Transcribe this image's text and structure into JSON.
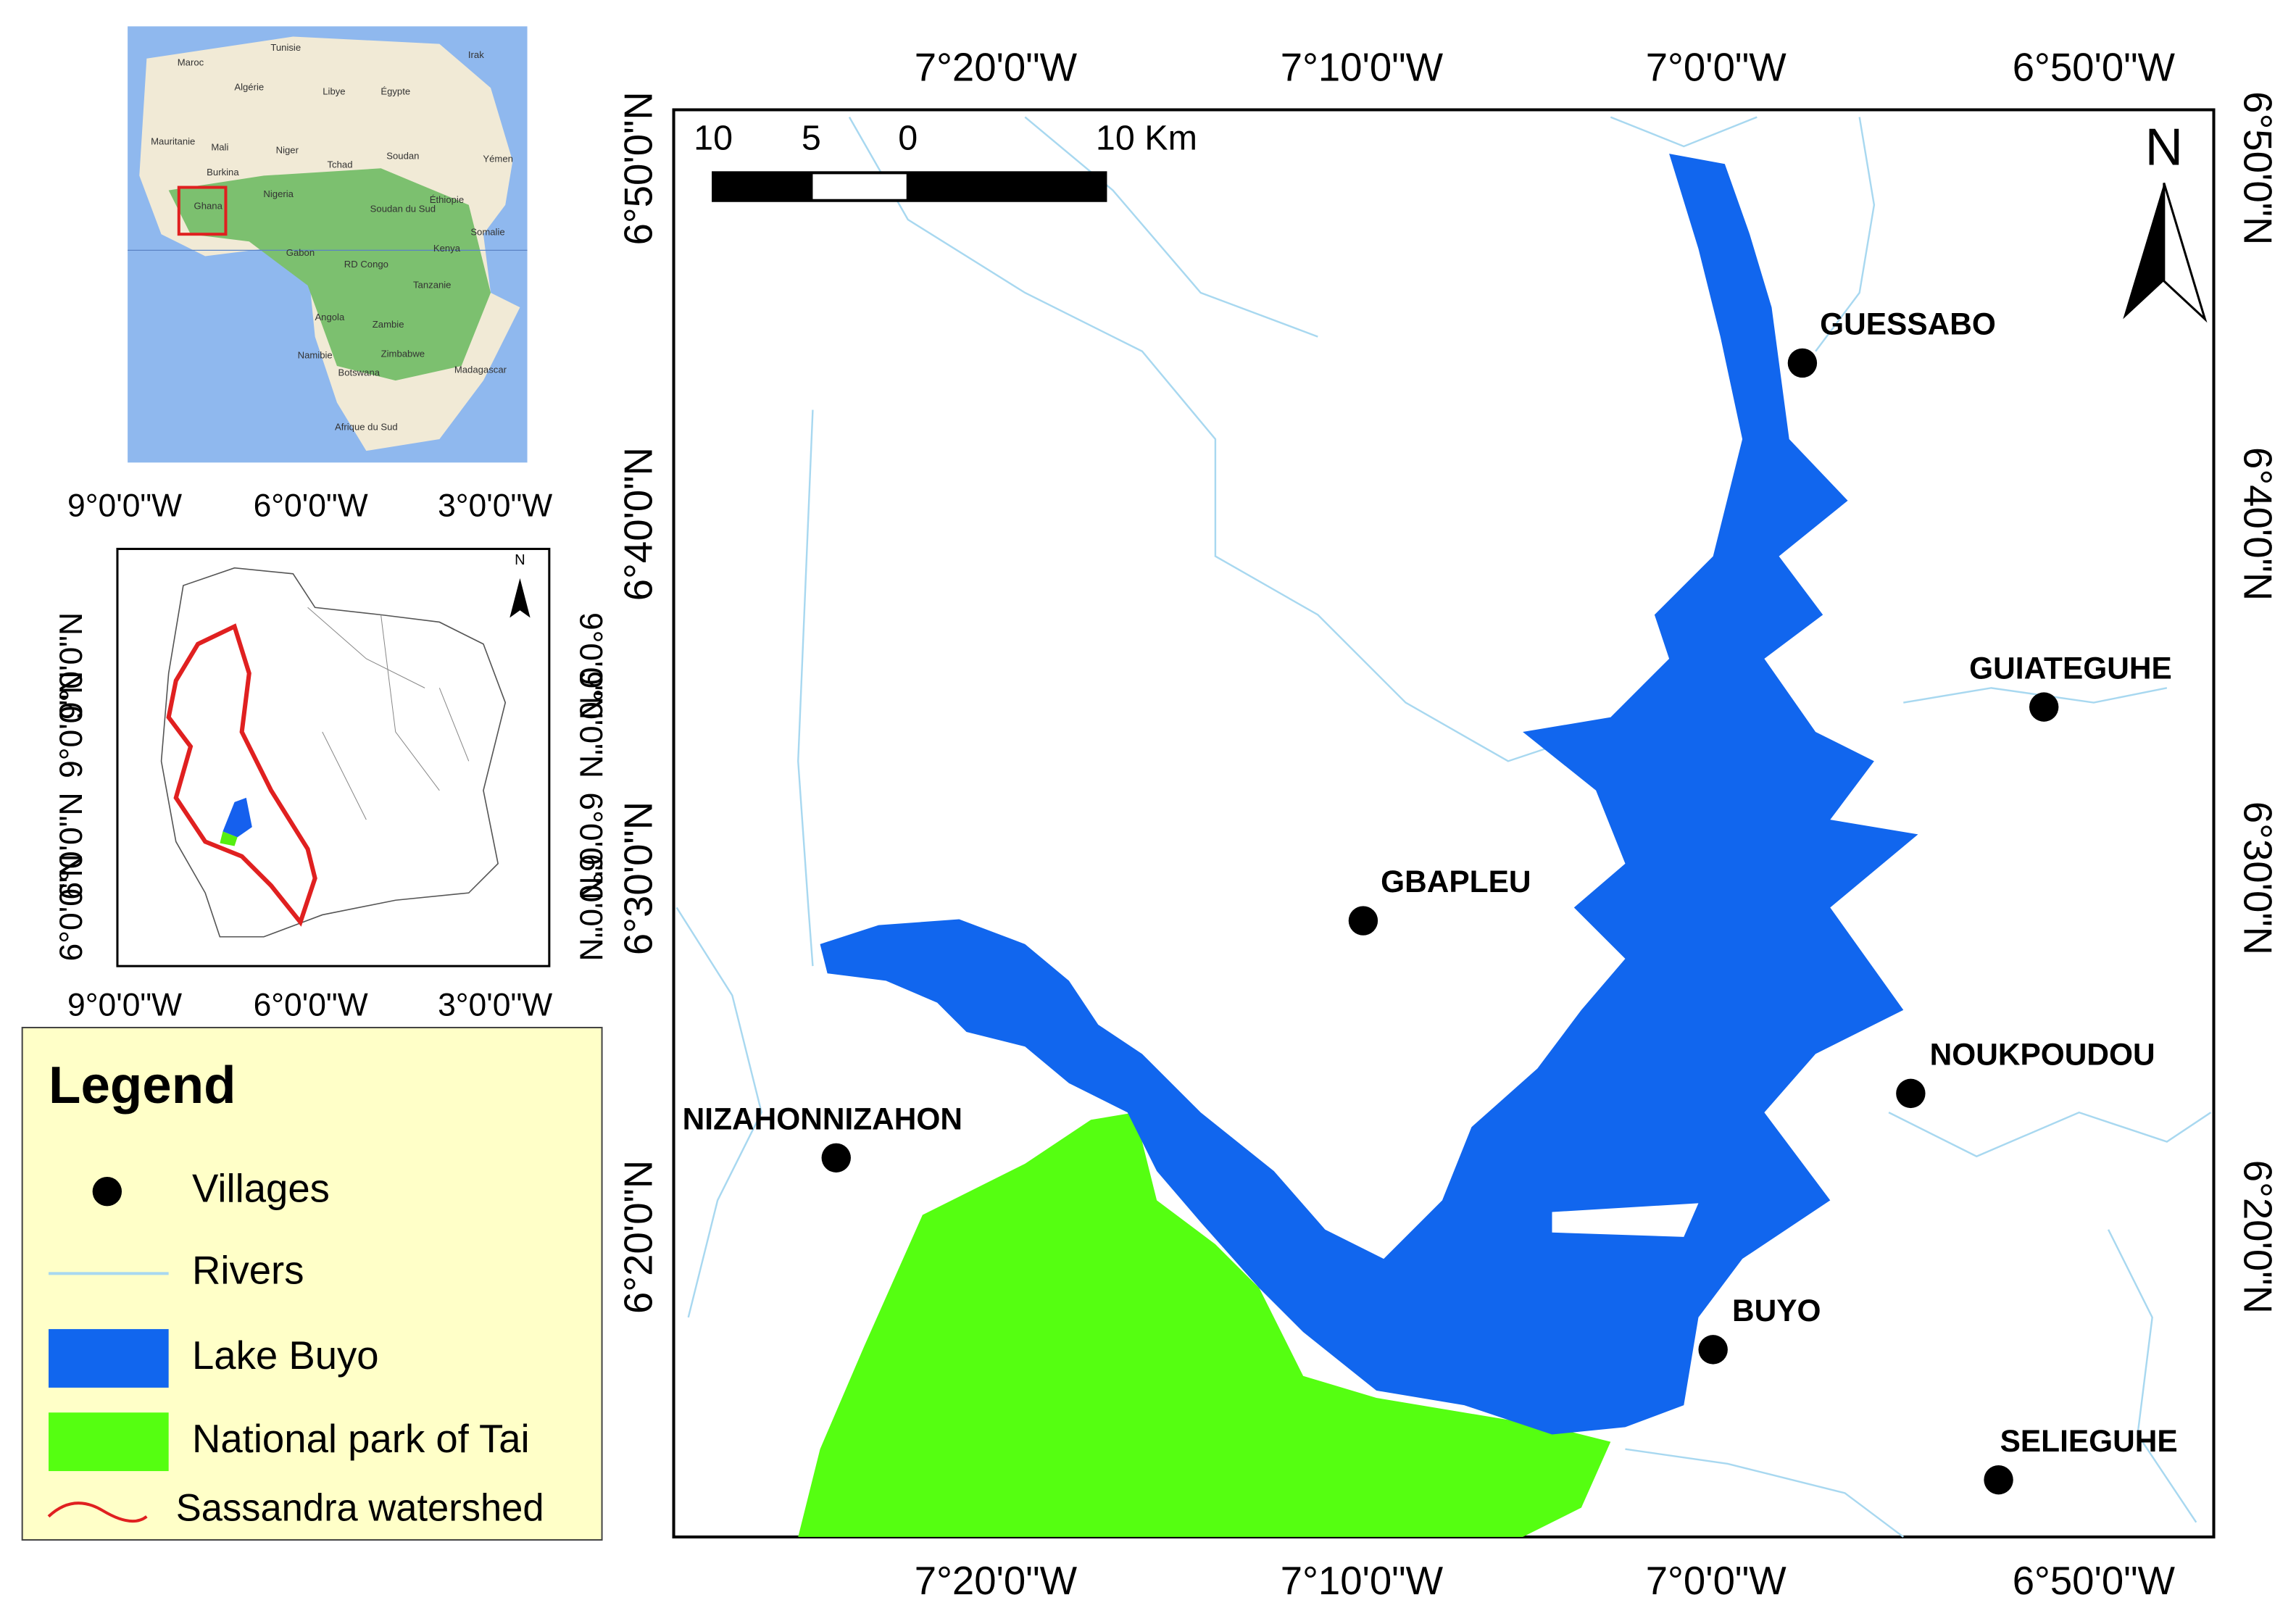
{
  "main_map": {
    "top_axis_labels": [
      "7°20'0\"W",
      "7°10'0\"W",
      "7°0'0\"W",
      "6°50'0\"W"
    ],
    "bottom_axis_labels": [
      "7°20'0\"W",
      "7°10'0\"W",
      "7°0'0\"W",
      "6°50'0\"W"
    ],
    "left_axis_labels": [
      "6°50'0\"N",
      "6°40'0\"N",
      "6°30'0\"N",
      "6°20'0\"N"
    ],
    "right_axis_labels": [
      "6°50'0\"N",
      "6°40'0\"N",
      "6°30'0\"N",
      "6°20'0\"N"
    ],
    "villages": [
      "GUESSABO",
      "GUIATEGUHE",
      "GBAPLEU",
      "NOUKPOUDOU",
      "NIZAHONNIZAHON",
      "BUYO",
      "SELIEGUHE"
    ],
    "scale_bar": [
      "10",
      "5",
      "0",
      "10 Km"
    ],
    "north": "N"
  },
  "inset_africa": {
    "labels": [
      "Tunisie",
      "Maroc",
      "Algérie",
      "Libye",
      "Égypte",
      "Irak",
      "Mauritanie",
      "Mali",
      "Niger",
      "Tchad",
      "Soudan",
      "Yémen",
      "Burkina",
      "Nigeria",
      "Ghana",
      "Éthiopie",
      "Soudan du Sud",
      "Somalie",
      "Gabon",
      "RD Congo",
      "Kenya",
      "Tanzanie",
      "Angola",
      "Zambie",
      "Namibie",
      "Zimbabwe",
      "Botswana",
      "Madagascar",
      "Afrique du Sud"
    ]
  },
  "inset_country": {
    "top_axis_labels": [
      "9°0'0\"W",
      "6°0'0\"W",
      "3°0'0\"W"
    ],
    "bottom_axis_labels": [
      "9°0'0\"W",
      "6°0'0\"W",
      "3°0'0\"W"
    ],
    "left_axis_labels": [
      "9°0'0\"N",
      "9°0'0\"N",
      "6°0'0\"N",
      "6°0'0\"N"
    ],
    "right_axis_labels": [
      "9°0'0\"N",
      "9°0'0\"N",
      "6°0'0\"N",
      "6°0'0\"N"
    ],
    "north": "N"
  },
  "legend": {
    "title": "Legend",
    "items": [
      "Villages",
      "Rivers",
      "Lake Buyo",
      "National park of Tai",
      "Sassandra watershed"
    ]
  }
}
